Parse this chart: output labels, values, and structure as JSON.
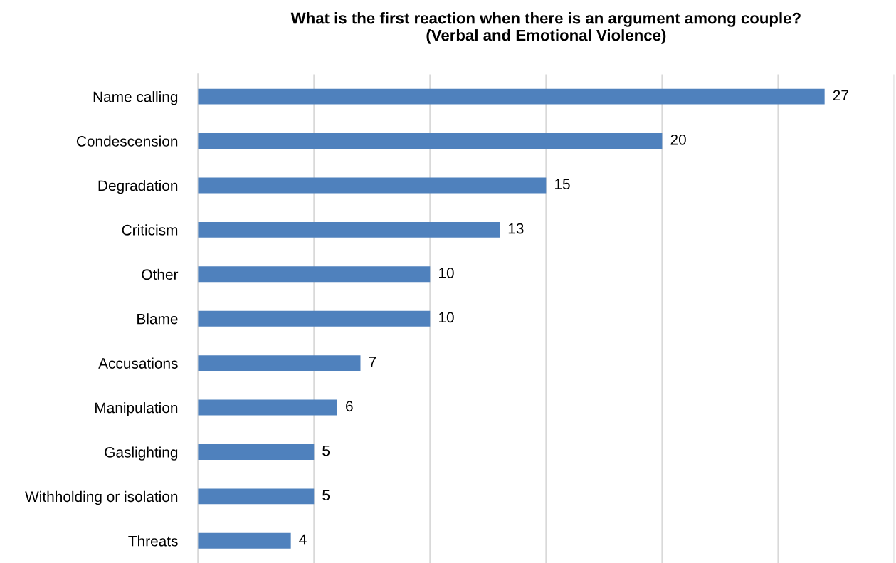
{
  "chart_data": {
    "type": "bar",
    "orientation": "horizontal",
    "title": "What is the first reaction when there is an argument among couple?\n(Verbal and Emotional Violence)",
    "categories": [
      "Name calling",
      "Condescension",
      "Degradation",
      "Criticism",
      "Other",
      "Blame",
      "Accusations",
      "Manipulation",
      "Gaslighting",
      "Withholding or isolation",
      "Threats"
    ],
    "values": [
      27,
      20,
      15,
      13,
      10,
      10,
      7,
      6,
      5,
      5,
      4
    ],
    "color": "#4f81bd",
    "xlim": [
      0,
      30
    ],
    "xticks": [
      {
        "value": 0,
        "label": null
      },
      {
        "value": 5,
        "label": null
      },
      {
        "value": 10,
        "label": null
      },
      {
        "value": 15,
        "label": null
      },
      {
        "value": 20,
        "label": null
      },
      {
        "value": 25,
        "label": null
      },
      {
        "value": 30,
        "label": null
      }
    ],
    "grid": "x",
    "data_labels": true,
    "tick_labels": "y",
    "legend": false
  }
}
